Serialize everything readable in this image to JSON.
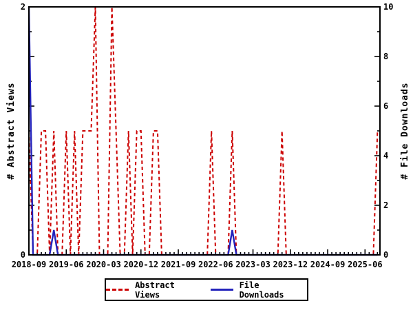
{
  "chart_data": {
    "type": "line",
    "title": "",
    "x_axis": {
      "start_month": "2018-09",
      "end_month": "2025-09",
      "minor_tick_interval_months": 1,
      "months_per_major_tick": 9,
      "major_tick_labels": [
        "2018-09",
        "2019-06",
        "2020-03",
        "2020-12",
        "2021-09",
        "2022-06",
        "2023-03",
        "2023-12",
        "2024-09",
        "2025-06"
      ]
    },
    "y_left": {
      "label": "# Abstract Views",
      "min": 0,
      "max": 2,
      "labeled_ticks": [
        {
          "value": 2,
          "label": "2"
        },
        {
          "value": 0,
          "label": "0"
        }
      ]
    },
    "y_right": {
      "label": "# File Downloads",
      "min": 0,
      "max": 10,
      "labeled_ticks": [
        {
          "value": 0,
          "label": "0"
        },
        {
          "value": 2,
          "label": "2"
        },
        {
          "value": 4,
          "label": "4"
        },
        {
          "value": 6,
          "label": "6"
        },
        {
          "value": 8,
          "label": "8"
        },
        {
          "value": 10,
          "label": "10"
        }
      ],
      "minor_tick_every": 1
    },
    "series": [
      {
        "name": "Abstract Views",
        "axis": "left",
        "color": "#CC0000",
        "style": "dashed",
        "values": [
          1,
          0,
          0,
          1,
          1,
          0,
          1,
          0,
          0,
          1,
          0,
          1,
          0,
          1,
          1,
          1,
          2,
          0,
          0,
          0,
          2,
          1,
          0,
          0,
          1,
          0,
          1,
          1,
          0,
          0,
          1,
          1,
          0,
          0,
          0,
          0,
          0,
          0,
          0,
          0,
          0,
          0,
          0,
          0,
          1,
          0,
          0,
          0,
          0,
          1,
          0,
          0,
          0,
          0,
          0,
          0,
          0,
          0,
          0,
          0,
          0,
          1,
          0,
          0,
          0,
          0,
          0,
          0,
          0,
          0,
          0,
          0,
          0,
          0,
          0,
          0,
          0,
          0,
          0,
          0,
          0,
          0,
          0,
          0,
          1
        ]
      },
      {
        "name": "File Downloads",
        "axis": "right",
        "color": "#2222BB",
        "style": "solid",
        "values": [
          10,
          0,
          0,
          0,
          0,
          0,
          1,
          0,
          0,
          0,
          0,
          0,
          0,
          0,
          0,
          0,
          0,
          0,
          0,
          0,
          0,
          0,
          0,
          0,
          0,
          0,
          0,
          0,
          0,
          0,
          0,
          0,
          0,
          0,
          0,
          0,
          0,
          0,
          0,
          0,
          0,
          0,
          0,
          0,
          0,
          0,
          0,
          0,
          0,
          1,
          0,
          0,
          0,
          0,
          0,
          0,
          0,
          0,
          0,
          0,
          0,
          0,
          0,
          0,
          0,
          0,
          0,
          0,
          0,
          0,
          0,
          0,
          0,
          0,
          0,
          0,
          0,
          0,
          0,
          0,
          0,
          0,
          0,
          0,
          0
        ]
      }
    ],
    "frame_color": "#000000",
    "background_color": "#FFFFFF",
    "legend_position": "bottom"
  },
  "legend": {
    "entries": [
      {
        "label": "Abstract Views",
        "color": "#CC0000",
        "style": "dashed"
      },
      {
        "label": "File Downloads",
        "color": "#2222BB",
        "style": "solid"
      }
    ]
  }
}
